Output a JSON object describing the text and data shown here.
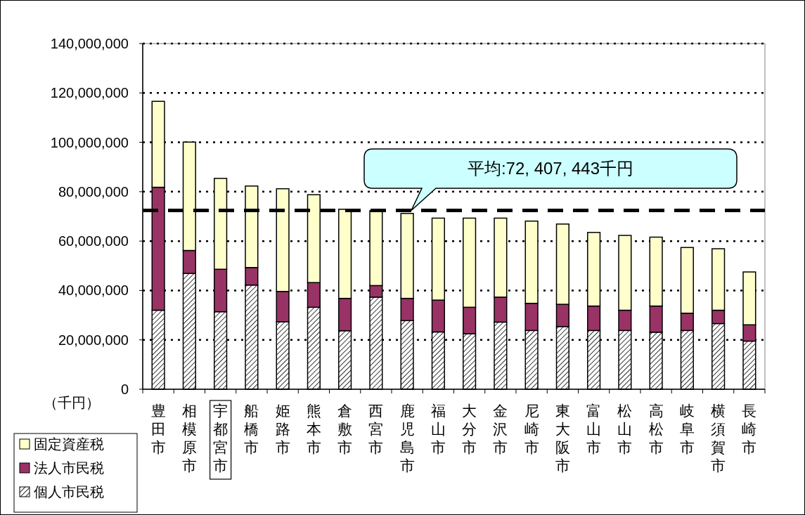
{
  "chart_data": {
    "type": "bar",
    "stacked": true,
    "ylabel": "（千円）",
    "categories": [
      "豊田市",
      "相模原市",
      "宇都宮市",
      "船橋市",
      "姫路市",
      "熊本市",
      "倉敷市",
      "西宮市",
      "鹿児島市",
      "福山市",
      "大分市",
      "金沢市",
      "尼崎市",
      "東大阪市",
      "富山市",
      "松山市",
      "高松市",
      "岐阜市",
      "横須賀市",
      "長崎市"
    ],
    "series": [
      {
        "name": "個人市民税",
        "color": "#000000",
        "values": [
          32000000,
          46900000,
          31400000,
          42200000,
          27300000,
          33200000,
          23700000,
          37300000,
          27800000,
          23200000,
          22500000,
          27200000,
          23800000,
          25400000,
          23800000,
          23800000,
          23100000,
          23800000,
          26600000,
          19500000
        ]
      },
      {
        "name": "法人市民税",
        "color": "#993366",
        "values": [
          49800000,
          9300000,
          17200000,
          7100000,
          12300000,
          10000000,
          13100000,
          4700000,
          9000000,
          12900000,
          10700000,
          10100000,
          11000000,
          9000000,
          9900000,
          8200000,
          10600000,
          7000000,
          5400000,
          6600000
        ]
      },
      {
        "name": "固定資産税",
        "color": "#ffffcc",
        "values": [
          34800000,
          43900000,
          36800000,
          33000000,
          41600000,
          35600000,
          36100000,
          30300000,
          34400000,
          33200000,
          36100000,
          32000000,
          33300000,
          32500000,
          29800000,
          30300000,
          27900000,
          26600000,
          24900000,
          21400000
        ]
      }
    ],
    "ylim": [
      0,
      140000000
    ],
    "yticks": [
      0,
      {
        "value": 20000000,
        "label": "20,000,000"
      },
      {
        "value": 40000000,
        "label": "40,000,000"
      },
      {
        "value": 60000000,
        "label": "60,000,000"
      },
      {
        "value": 80000000,
        "label": "80,000,000"
      },
      {
        "value": 100000000,
        "label": "100,000,000"
      },
      {
        "value": 120000000,
        "label": "120,000,000"
      },
      {
        "value": 140000000,
        "label": "140,000,000"
      }
    ],
    "grid": "y",
    "legend": "bottom left",
    "ref_lines": [
      {
        "axis": "y",
        "value": 72407443,
        "color": "#000000",
        "line_style": "dashed"
      }
    ],
    "annotations": [
      {
        "text": "平均:72, 407, 443千円",
        "y": 72407443
      }
    ]
  }
}
